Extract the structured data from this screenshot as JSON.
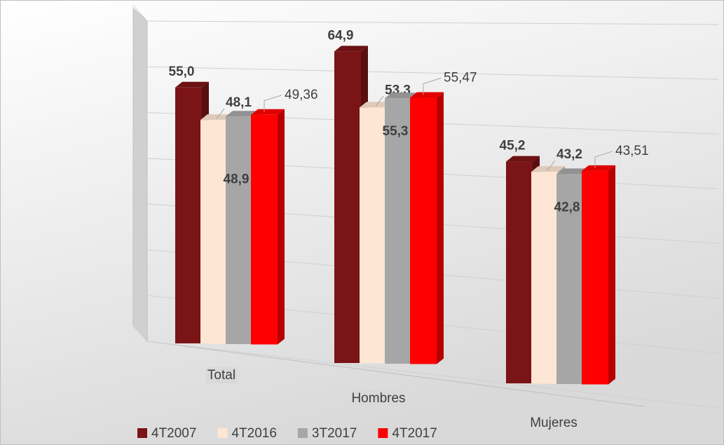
{
  "chart_data": {
    "type": "bar3d",
    "categories": [
      "Total",
      "Hombres",
      "Mujeres"
    ],
    "series": [
      {
        "name": "4T2007",
        "color": "#7b1416",
        "values": [
          55.0,
          64.9,
          45.2
        ],
        "value_labels": [
          "55,0",
          "64,9",
          "45,2"
        ]
      },
      {
        "name": "4T2016",
        "color": "#fde6d3",
        "values": [
          48.1,
          53.3,
          43.2
        ],
        "value_labels": [
          "48,1",
          "53,3",
          "43,2"
        ]
      },
      {
        "name": "3T2017",
        "color": "#a6a6a6",
        "values": [
          48.9,
          55.3,
          42.8
        ],
        "value_labels": [
          "48,9",
          "55,3",
          "42,8"
        ]
      },
      {
        "name": "4T2017",
        "color": "#ff0000",
        "values": [
          49.36,
          55.47,
          43.51
        ],
        "value_labels": [
          "49,36",
          "55,47",
          "43,51"
        ]
      }
    ],
    "ylim": [
      0,
      70
    ],
    "yticks": [
      0,
      10,
      20,
      30,
      40,
      50,
      60,
      70
    ],
    "grid": true,
    "legend": "bottom"
  }
}
